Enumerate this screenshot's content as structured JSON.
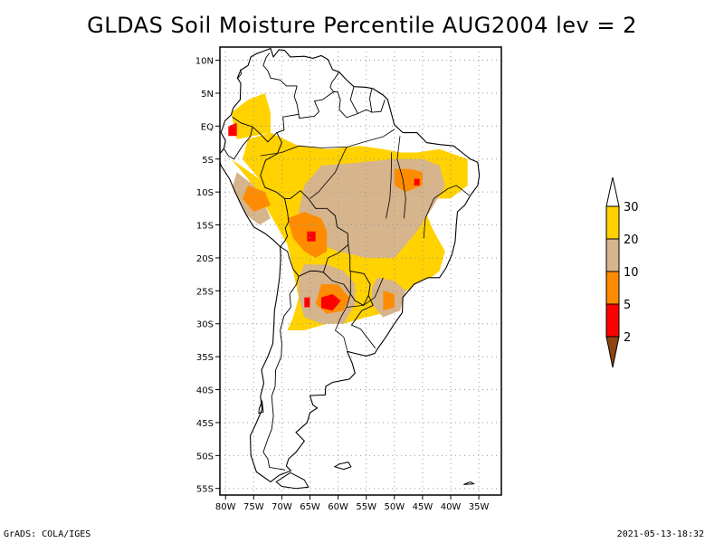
{
  "title": "GLDAS Soil Moisture Percentile AUG2004 lev = 2",
  "footer": {
    "left": "GrADS: COLA/IGES",
    "right": "2021-05-13-18:32"
  },
  "map": {
    "lon_range": [
      -81,
      -31
    ],
    "lat_range": [
      -56,
      12
    ],
    "lon_ticks": [
      {
        "value": -80,
        "label": "80W"
      },
      {
        "value": -75,
        "label": "75W"
      },
      {
        "value": -70,
        "label": "70W"
      },
      {
        "value": -65,
        "label": "65W"
      },
      {
        "value": -60,
        "label": "60W"
      },
      {
        "value": -55,
        "label": "55W"
      },
      {
        "value": -50,
        "label": "50W"
      },
      {
        "value": -45,
        "label": "45W"
      },
      {
        "value": -40,
        "label": "40W"
      },
      {
        "value": -35,
        "label": "35W"
      }
    ],
    "lat_ticks": [
      {
        "value": 10,
        "label": "10N"
      },
      {
        "value": 5,
        "label": "5N"
      },
      {
        "value": 0,
        "label": "EQ"
      },
      {
        "value": -5,
        "label": "5S"
      },
      {
        "value": -10,
        "label": "10S"
      },
      {
        "value": -15,
        "label": "15S"
      },
      {
        "value": -20,
        "label": "20S"
      },
      {
        "value": -25,
        "label": "25S"
      },
      {
        "value": -30,
        "label": "30S"
      },
      {
        "value": -35,
        "label": "35S"
      },
      {
        "value": -40,
        "label": "40S"
      },
      {
        "value": -45,
        "label": "45S"
      },
      {
        "value": -50,
        "label": "50S"
      },
      {
        "value": -55,
        "label": "55S"
      }
    ],
    "grid": true,
    "colors": {
      "gt30": "#ffffff",
      "c20_30": "#ffd200",
      "c10_20": "#d6b48c",
      "c5_10": "#ff8c00",
      "c2_5": "#ff0000",
      "lt2": "#8b4513"
    },
    "coastline": [
      [
        -77.3,
        8.5
      ],
      [
        -76,
        9.2
      ],
      [
        -75.5,
        10.5
      ],
      [
        -74.5,
        11
      ],
      [
        -73.5,
        11.3
      ],
      [
        -72,
        11.8
      ],
      [
        -71.5,
        10.5
      ],
      [
        -70.5,
        11.6
      ],
      [
        -69.5,
        11.5
      ],
      [
        -68.5,
        10.5
      ],
      [
        -66,
        10.6
      ],
      [
        -64.5,
        10.3
      ],
      [
        -63,
        10.7
      ],
      [
        -61.8,
        10.1
      ],
      [
        -61,
        8.6
      ],
      [
        -59.8,
        8.2
      ],
      [
        -58.5,
        7
      ],
      [
        -57.2,
        6
      ],
      [
        -55,
        5.9
      ],
      [
        -53.8,
        5.7
      ],
      [
        -52,
        4.7
      ],
      [
        -51.2,
        4
      ],
      [
        -50.5,
        1.8
      ],
      [
        -50,
        0.2
      ],
      [
        -48.5,
        -1
      ],
      [
        -46,
        -1
      ],
      [
        -44.3,
        -2.5
      ],
      [
        -42,
        -2.8
      ],
      [
        -39.5,
        -3
      ],
      [
        -38,
        -4
      ],
      [
        -36.5,
        -5
      ],
      [
        -35.2,
        -5.5
      ],
      [
        -34.9,
        -7.5
      ],
      [
        -35.2,
        -9
      ],
      [
        -36.5,
        -10.5
      ],
      [
        -37.5,
        -12
      ],
      [
        -38.8,
        -13
      ],
      [
        -39,
        -15
      ],
      [
        -39.2,
        -17.5
      ],
      [
        -39.8,
        -19.5
      ],
      [
        -40.8,
        -21.5
      ],
      [
        -42,
        -23
      ],
      [
        -44,
        -23
      ],
      [
        -46.5,
        -24
      ],
      [
        -48.5,
        -26
      ],
      [
        -48.6,
        -28.3
      ],
      [
        -50,
        -30
      ],
      [
        -51.5,
        -32
      ],
      [
        -53,
        -33.8
      ],
      [
        -53.5,
        -34.5
      ],
      [
        -55,
        -34.9
      ],
      [
        -57,
        -34.5
      ],
      [
        -58.4,
        -34.2
      ],
      [
        -57.5,
        -36
      ],
      [
        -57,
        -37.5
      ],
      [
        -58,
        -38.4
      ],
      [
        -61,
        -38.9
      ],
      [
        -62.2,
        -39.5
      ],
      [
        -62.3,
        -40.8
      ],
      [
        -65,
        -40.9
      ],
      [
        -64.5,
        -42.3
      ],
      [
        -63.7,
        -42.8
      ],
      [
        -65,
        -43.5
      ],
      [
        -65.5,
        -45
      ],
      [
        -67.5,
        -46.5
      ],
      [
        -66,
        -47.8
      ],
      [
        -67.5,
        -49.5
      ],
      [
        -68.8,
        -50.5
      ],
      [
        -69.2,
        -51.6
      ],
      [
        -68.4,
        -52.3
      ],
      [
        -70.5,
        -53
      ],
      [
        -72,
        -54
      ],
      [
        -74.5,
        -52.5
      ],
      [
        -75.5,
        -50
      ],
      [
        -75.6,
        -47
      ],
      [
        -74.5,
        -45
      ],
      [
        -73.5,
        -43
      ],
      [
        -73.8,
        -41
      ],
      [
        -73.2,
        -39
      ],
      [
        -73.6,
        -37
      ],
      [
        -72.5,
        -35
      ],
      [
        -71.6,
        -33
      ],
      [
        -71.4,
        -30
      ],
      [
        -71.3,
        -28
      ],
      [
        -70.9,
        -26
      ],
      [
        -70.4,
        -23
      ],
      [
        -70.2,
        -20
      ],
      [
        -70.3,
        -18.3
      ],
      [
        -71.5,
        -17.3
      ],
      [
        -73,
        -16.3
      ],
      [
        -75,
        -15.3
      ],
      [
        -76.3,
        -13.5
      ],
      [
        -77.2,
        -12
      ],
      [
        -78.3,
        -10
      ],
      [
        -79.3,
        -8
      ],
      [
        -80.8,
        -6
      ],
      [
        -81.3,
        -4.5
      ],
      [
        -80.3,
        -3.4
      ],
      [
        -80,
        -2.2
      ],
      [
        -80.8,
        -1
      ],
      [
        -80.1,
        0.8
      ],
      [
        -79,
        1.7
      ],
      [
        -78.6,
        2.8
      ],
      [
        -77.4,
        4
      ],
      [
        -77.3,
        6.5
      ],
      [
        -77.9,
        7.3
      ]
    ],
    "borders": [
      [
        [
          -67,
          -22.8
        ],
        [
          -67.4,
          -24
        ],
        [
          -68.6,
          -25.5
        ],
        [
          -68.4,
          -27.5
        ],
        [
          -69.6,
          -28.8
        ],
        [
          -70.3,
          -31
        ],
        [
          -70,
          -33
        ],
        [
          -70.1,
          -35
        ],
        [
          -71.1,
          -37
        ],
        [
          -71.2,
          -39.5
        ],
        [
          -71.8,
          -41
        ],
        [
          -71.5,
          -44
        ],
        [
          -71.8,
          -46
        ],
        [
          -72.5,
          -47.5
        ],
        [
          -73.3,
          -49.5
        ],
        [
          -72.5,
          -50.5
        ],
        [
          -72.2,
          -51.8
        ],
        [
          -69.4,
          -52.2
        ]
      ],
      [
        [
          -70.3,
          -18.3
        ],
        [
          -69,
          -19
        ],
        [
          -68.5,
          -20.5
        ],
        [
          -68,
          -21.7
        ],
        [
          -67,
          -22.8
        ],
        [
          -65,
          -22
        ],
        [
          -63.8,
          -22
        ],
        [
          -62.6,
          -22.2
        ],
        [
          -61.8,
          -20
        ],
        [
          -60,
          -19.3
        ],
        [
          -58.2,
          -18
        ],
        [
          -58.3,
          -16.3
        ],
        [
          -60.2,
          -15.3
        ],
        [
          -60.5,
          -13.6
        ],
        [
          -62,
          -12.5
        ],
        [
          -64,
          -12.5
        ],
        [
          -65.3,
          -11
        ],
        [
          -66.7,
          -9.8
        ],
        [
          -68.5,
          -11
        ],
        [
          -69.5,
          -11
        ],
        [
          -69,
          -13
        ],
        [
          -68.8,
          -14.5
        ],
        [
          -69.4,
          -15.5
        ],
        [
          -69,
          -16.7
        ],
        [
          -69.5,
          -17.5
        ],
        [
          -70.3,
          -18.3
        ]
      ],
      [
        [
          -62.6,
          -22.2
        ],
        [
          -61,
          -23.5
        ],
        [
          -59,
          -24
        ],
        [
          -57.8,
          -25.5
        ],
        [
          -57,
          -26.5
        ],
        [
          -55.5,
          -27.2
        ],
        [
          -54.6,
          -25.7
        ],
        [
          -54.3,
          -24
        ],
        [
          -55.4,
          -22.4
        ],
        [
          -57.9,
          -22
        ],
        [
          -57.9,
          -20
        ],
        [
          -58.2,
          -18
        ]
      ],
      [
        [
          -54.6,
          -25.7
        ],
        [
          -53.8,
          -27.2
        ],
        [
          -55.8,
          -28
        ],
        [
          -57.6,
          -30.2
        ],
        [
          -56,
          -30.8
        ],
        [
          -53.4,
          -33.7
        ]
      ],
      [
        [
          -69.5,
          -11
        ],
        [
          -71,
          -10
        ],
        [
          -73,
          -9.3
        ],
        [
          -73.8,
          -7.5
        ],
        [
          -72.9,
          -5.2
        ],
        [
          -70.8,
          -4.2
        ],
        [
          -70,
          -2.5
        ],
        [
          -70.9,
          -1
        ],
        [
          -69.6,
          -0.6
        ],
        [
          -69.8,
          1.4
        ],
        [
          -67,
          1.8
        ],
        [
          -66.9,
          1.2
        ],
        [
          -64.2,
          1.5
        ],
        [
          -63.4,
          2.2
        ],
        [
          -64.2,
          3.8
        ],
        [
          -62.8,
          4
        ],
        [
          -60.8,
          5.2
        ],
        [
          -60.1,
          5.2
        ],
        [
          -59.6,
          4
        ],
        [
          -59.8,
          2.5
        ],
        [
          -58.5,
          1.3
        ],
        [
          -56.5,
          1.9
        ],
        [
          -55,
          2.5
        ],
        [
          -54,
          2.1
        ],
        [
          -52.4,
          2.2
        ],
        [
          -51.7,
          4
        ]
      ],
      [
        [
          -67.3,
          6.1
        ],
        [
          -69.2,
          6.1
        ],
        [
          -70.3,
          7
        ],
        [
          -72,
          7.3
        ],
        [
          -72.5,
          8.4
        ],
        [
          -73.3,
          9.2
        ],
        [
          -72.8,
          10.4
        ],
        [
          -72.2,
          11.1
        ]
      ],
      [
        [
          -67,
          1.8
        ],
        [
          -67.3,
          3.3
        ],
        [
          -67.8,
          4.5
        ],
        [
          -67.3,
          6.1
        ]
      ],
      [
        [
          -69.6,
          -0.6
        ],
        [
          -70.9,
          -1
        ],
        [
          -72.5,
          -2.4
        ],
        [
          -73.7,
          -1.3
        ],
        [
          -75.2,
          -0.1
        ],
        [
          -77.3,
          0.5
        ],
        [
          -78.8,
          1.4
        ]
      ],
      [
        [
          -75.2,
          -0.1
        ],
        [
          -75.6,
          -1.6
        ],
        [
          -77,
          -3
        ],
        [
          -78.5,
          -5
        ],
        [
          -79.5,
          -4.5
        ],
        [
          -80.3,
          -3.4
        ]
      ],
      [
        [
          -77.8,
          7.3
        ],
        [
          -77.2,
          7.9
        ],
        [
          -77.4,
          8.6
        ]
      ],
      [
        [
          -60.8,
          5.2
        ],
        [
          -61.4,
          5.9
        ],
        [
          -61.1,
          6.7
        ],
        [
          -60.6,
          7.2
        ],
        [
          -59.8,
          8.3
        ]
      ],
      [
        [
          -57.2,
          6
        ],
        [
          -57.8,
          4
        ],
        [
          -56.5,
          1.9
        ]
      ],
      [
        [
          -54,
          5.7
        ],
        [
          -54.4,
          4.2
        ],
        [
          -54,
          2.1
        ]
      ]
    ],
    "rivers": [
      [
        [
          -73.8,
          -4.5
        ],
        [
          -70,
          -4
        ],
        [
          -67,
          -3
        ],
        [
          -63,
          -3.3
        ],
        [
          -60,
          -3.2
        ],
        [
          -58.5,
          -3.2
        ],
        [
          -55,
          -2.3
        ],
        [
          -52,
          -1.6
        ],
        [
          -50,
          -0.5
        ]
      ],
      [
        [
          -58.5,
          -3.2
        ],
        [
          -59.5,
          -5
        ],
        [
          -60.5,
          -7
        ],
        [
          -62,
          -8.5
        ],
        [
          -63.5,
          -10
        ],
        [
          -65,
          -11
        ]
      ],
      [
        [
          -49,
          -1.5
        ],
        [
          -49.5,
          -5
        ],
        [
          -48.5,
          -8
        ],
        [
          -48,
          -11
        ],
        [
          -48.3,
          -14
        ]
      ],
      [
        [
          -50.5,
          -4
        ],
        [
          -50.6,
          -8
        ],
        [
          -50.8,
          -11
        ],
        [
          -51.5,
          -14
        ]
      ],
      [
        [
          -36.7,
          -10.5
        ],
        [
          -39,
          -9
        ],
        [
          -40.5,
          -9.5
        ],
        [
          -43,
          -11
        ],
        [
          -44.5,
          -14
        ],
        [
          -44.8,
          -17
        ]
      ],
      [
        [
          -58.4,
          -34
        ],
        [
          -59,
          -32
        ],
        [
          -60.5,
          -31
        ],
        [
          -59.5,
          -29
        ],
        [
          -58.5,
          -27.5
        ],
        [
          -57.8,
          -25.5
        ],
        [
          -57.8,
          -22
        ]
      ],
      [
        [
          -58.5,
          -27.5
        ],
        [
          -55.5,
          -27.2
        ],
        [
          -53.5,
          -26
        ],
        [
          -52,
          -23
        ]
      ]
    ],
    "islands": [
      [
        [
          -68.5,
          -52.6
        ],
        [
          -66,
          -53.7
        ],
        [
          -65.3,
          -54.8
        ],
        [
          -67.5,
          -55
        ],
        [
          -70,
          -54.7
        ],
        [
          -71,
          -54
        ],
        [
          -68.5,
          -52.6
        ]
      ],
      [
        [
          -59.8,
          -51.3
        ],
        [
          -58.2,
          -51
        ],
        [
          -57.7,
          -51.7
        ],
        [
          -59,
          -52.1
        ],
        [
          -60.6,
          -51.7
        ],
        [
          -59.8,
          -51.3
        ]
      ],
      [
        [
          -36.5,
          -54
        ],
        [
          -35.9,
          -54.3
        ],
        [
          -37.7,
          -54.4
        ],
        [
          -36.5,
          -54
        ]
      ],
      [
        [
          -73.5,
          -41.8
        ],
        [
          -74,
          -42.8
        ],
        [
          -74.1,
          -43.6
        ],
        [
          -73.3,
          -43.4
        ],
        [
          -73.5,
          -41.8
        ]
      ]
    ],
    "legend": {
      "labels": [
        "30",
        "20",
        "10",
        "5",
        "2"
      ]
    }
  }
}
